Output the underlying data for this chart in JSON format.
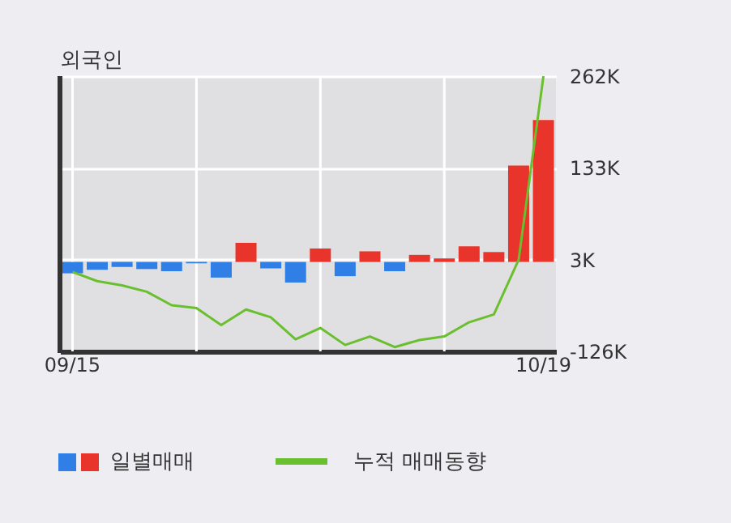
{
  "chart_data": {
    "type": "bar",
    "title": "외국인",
    "categories": [
      "09/15",
      null,
      null,
      null,
      null,
      null,
      null,
      null,
      null,
      null,
      null,
      null,
      null,
      null,
      null,
      null,
      null,
      null,
      null,
      "10/19"
    ],
    "series": [
      {
        "name": "일별매매",
        "colors": [
          "#2f7fe6",
          "#2f7fe6",
          "#2f7fe6",
          "#2f7fe6",
          "#2f7fe6",
          "#2f7fe6",
          "#2f7fe6",
          "#e8342a",
          "#2f7fe6",
          "#2f7fe6",
          "#e8342a",
          "#2f7fe6",
          "#e8342a",
          "#2f7fe6",
          "#e8342a",
          "#e8342a",
          "#e8342a",
          "#e8342a",
          "#e8342a",
          "#e8342a"
        ],
        "values": [
          -16,
          -11,
          -7,
          -10,
          -13,
          -2,
          -22,
          27,
          -9,
          -29,
          19,
          -20,
          15,
          -13,
          10,
          5,
          22,
          14,
          136,
          200
        ]
      },
      {
        "name": "누적 매매동향",
        "type": "line",
        "color": "#6abf2f",
        "values": [
          -14,
          -27,
          -33,
          -42,
          -61,
          -65,
          -89,
          -67,
          -78,
          -109,
          -93,
          -117,
          -105,
          -120,
          -110,
          -105,
          -85,
          -74,
          3,
          262
        ]
      }
    ],
    "ylim": [
      -126,
      262
    ],
    "yticks": [
      {
        "value": -126,
        "label": "-126K"
      },
      {
        "value": 3,
        "label": "3K"
      },
      {
        "value": 133,
        "label": "133K"
      },
      {
        "value": 262,
        "label": "262K"
      }
    ],
    "grid": true,
    "legend": "bottom"
  }
}
